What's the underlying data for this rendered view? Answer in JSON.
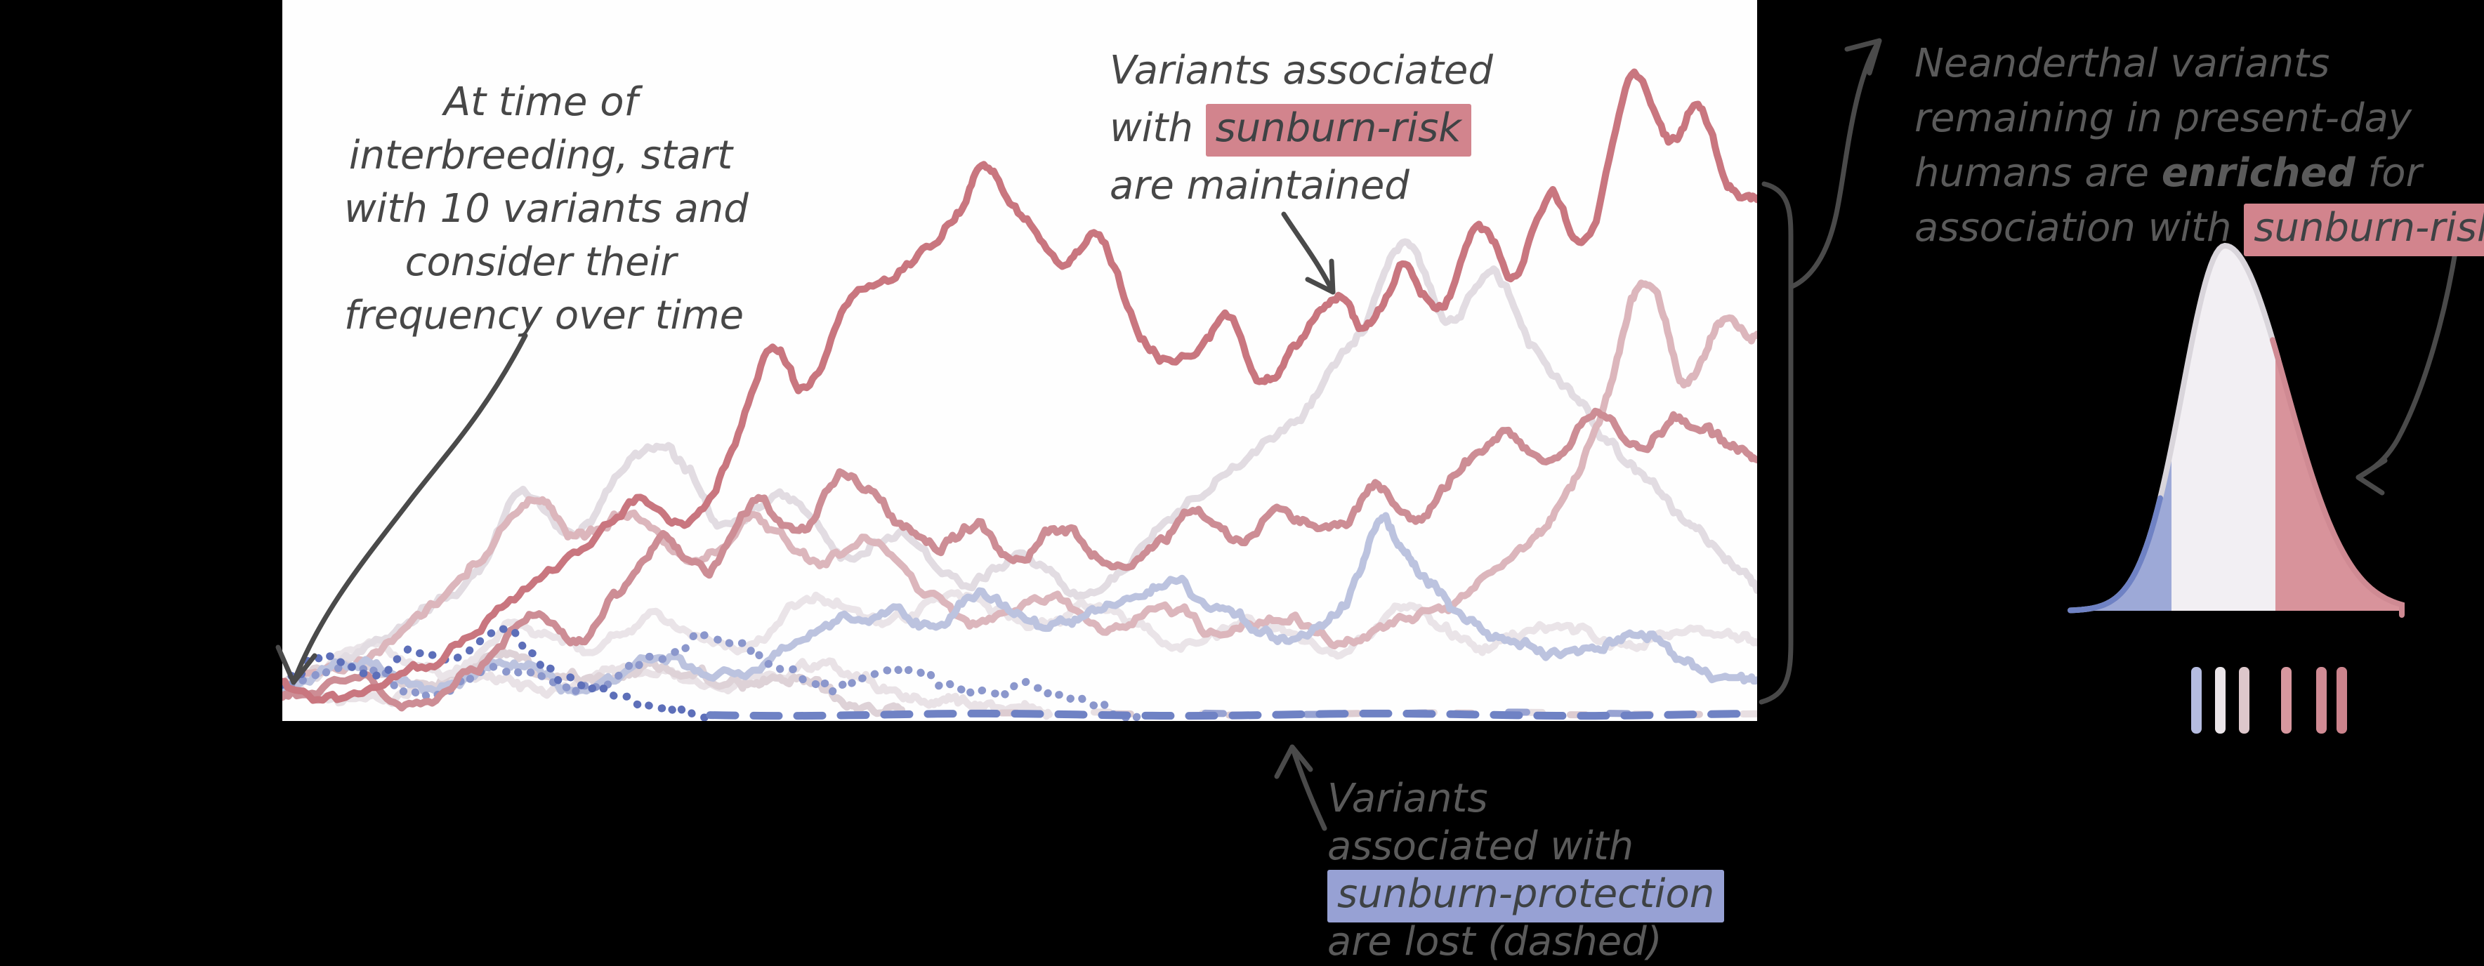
{
  "colors": {
    "background": "#000000",
    "plot_background": "#fefefe",
    "ink_dark": "#474747",
    "ink_gray": "#5a5a5a",
    "ink_on_highlight": "#3e4244",
    "risk_highlight": "#d2848d",
    "protection_highlight": "#97a1d4",
    "bracket": "#484848",
    "arrow": "#4a4a4a"
  },
  "annotations": {
    "start": {
      "l1": "At time of",
      "l2": "interbreeding, start",
      "l3": "with 10 variants and",
      "l4": "consider their",
      "l5": "frequency over time"
    },
    "maintained": {
      "l1": "Variants associated",
      "l2a": "with ",
      "l2hl": "sunburn-risk",
      "l3": "are maintained"
    },
    "enriched": {
      "l1": "Neanderthal variants",
      "l2": "remaining in present-day",
      "l3a": "humans are ",
      "l3b": "enriched",
      "l3c": " for",
      "l4a": "association with ",
      "l4hl": "sunburn-risk"
    },
    "lost": {
      "l1": "Variants",
      "l2": "associated with",
      "l3hl": "sunburn-protection",
      "l4": "are lost (dashed)"
    }
  },
  "chart_data": {
    "type": "line",
    "title": "",
    "xlabel": "",
    "ylabel": "",
    "x_range": [
      0,
      1
    ],
    "y_range": [
      0,
      1
    ],
    "grid": false,
    "legend": false,
    "axes_visible": false,
    "description": "Simulated frequency trajectories over time of 10 Neanderthal variants introduced at interbreeding; risk-associated (red) variants are maintained, protection-associated (blue) variants are lost (drawn dashed along zero after extinction).",
    "series": [
      {
        "name": "variant-pale-lost-a",
        "association": "weak",
        "fate": "lost",
        "color": "#e9e2e6",
        "style": "solid",
        "extinct_at": 0.52,
        "points": [
          [
            0,
            0.05
          ],
          [
            0.06,
            0.03
          ],
          [
            0.12,
            0.07
          ],
          [
            0.18,
            0.04
          ],
          [
            0.24,
            0.08
          ],
          [
            0.3,
            0.05
          ],
          [
            0.36,
            0.07
          ],
          [
            0.42,
            0.04
          ],
          [
            0.47,
            0.02
          ],
          [
            0.52,
            0.01
          ]
        ]
      },
      {
        "name": "variant-pale-lost-b",
        "association": "weak",
        "fate": "lost",
        "color": "#ded2d7",
        "style": "solid",
        "extinct_at": 0.42,
        "points": [
          [
            0,
            0.04
          ],
          [
            0.05,
            0.07
          ],
          [
            0.1,
            0.05
          ],
          [
            0.15,
            0.09
          ],
          [
            0.2,
            0.06
          ],
          [
            0.25,
            0.08
          ],
          [
            0.3,
            0.05
          ],
          [
            0.34,
            0.06
          ],
          [
            0.38,
            0.03
          ],
          [
            0.42,
            0.01
          ]
        ]
      },
      {
        "name": "variant-pale-low",
        "association": "weak",
        "fate": "maintained-low",
        "color": "#eae4e8",
        "style": "solid",
        "points": [
          [
            0,
            0.05
          ],
          [
            0.06,
            0.11
          ],
          [
            0.11,
            0.07
          ],
          [
            0.16,
            0.13
          ],
          [
            0.21,
            0.09
          ],
          [
            0.26,
            0.14
          ],
          [
            0.31,
            0.1
          ],
          [
            0.36,
            0.16
          ],
          [
            0.41,
            0.12
          ],
          [
            0.46,
            0.17
          ],
          [
            0.51,
            0.13
          ],
          [
            0.56,
            0.16
          ],
          [
            0.61,
            0.11
          ],
          [
            0.66,
            0.14
          ],
          [
            0.71,
            0.1
          ],
          [
            0.76,
            0.15
          ],
          [
            0.81,
            0.11
          ],
          [
            0.86,
            0.14
          ],
          [
            0.91,
            0.1
          ],
          [
            0.95,
            0.13
          ],
          [
            1,
            0.1
          ]
        ]
      },
      {
        "name": "variant-pale-gray",
        "association": "weak",
        "fate": "maintained-low",
        "color": "#e2dce2",
        "style": "solid",
        "points": [
          [
            0,
            0.05
          ],
          [
            0.05,
            0.09
          ],
          [
            0.09,
            0.14
          ],
          [
            0.13,
            0.2
          ],
          [
            0.165,
            0.32
          ],
          [
            0.2,
            0.27
          ],
          [
            0.235,
            0.37
          ],
          [
            0.27,
            0.36
          ],
          [
            0.3,
            0.27
          ],
          [
            0.34,
            0.3
          ],
          [
            0.38,
            0.23
          ],
          [
            0.42,
            0.26
          ],
          [
            0.46,
            0.19
          ],
          [
            0.5,
            0.23
          ],
          [
            0.54,
            0.18
          ],
          [
            0.58,
            0.24
          ],
          [
            0.62,
            0.31
          ],
          [
            0.66,
            0.38
          ],
          [
            0.7,
            0.45
          ],
          [
            0.73,
            0.54
          ],
          [
            0.76,
            0.66
          ],
          [
            0.79,
            0.57
          ],
          [
            0.82,
            0.63
          ],
          [
            0.85,
            0.52
          ],
          [
            0.88,
            0.44
          ],
          [
            0.91,
            0.36
          ],
          [
            0.94,
            0.3
          ],
          [
            0.97,
            0.24
          ],
          [
            1,
            0.18
          ]
        ]
      },
      {
        "name": "variant-pink-late-rise",
        "association": "risk",
        "fate": "maintained",
        "color": "#dcb6bc",
        "style": "solid",
        "points": [
          [
            0,
            0.04
          ],
          [
            0.05,
            0.08
          ],
          [
            0.09,
            0.14
          ],
          [
            0.13,
            0.22
          ],
          [
            0.17,
            0.3
          ],
          [
            0.2,
            0.25
          ],
          [
            0.24,
            0.29
          ],
          [
            0.28,
            0.22
          ],
          [
            0.32,
            0.27
          ],
          [
            0.36,
            0.21
          ],
          [
            0.4,
            0.25
          ],
          [
            0.44,
            0.18
          ],
          [
            0.48,
            0.14
          ],
          [
            0.52,
            0.17
          ],
          [
            0.56,
            0.12
          ],
          [
            0.6,
            0.15
          ],
          [
            0.64,
            0.11
          ],
          [
            0.68,
            0.14
          ],
          [
            0.72,
            0.1
          ],
          [
            0.76,
            0.13
          ],
          [
            0.8,
            0.17
          ],
          [
            0.84,
            0.22
          ],
          [
            0.87,
            0.3
          ],
          [
            0.9,
            0.45
          ],
          [
            0.925,
            0.61
          ],
          [
            0.95,
            0.47
          ],
          [
            0.975,
            0.55
          ],
          [
            1,
            0.53
          ]
        ]
      },
      {
        "name": "variant-blue-light",
        "association": "protection",
        "fate": "maintained-low",
        "color": "#bcc3df",
        "style": "solid",
        "points": [
          [
            0,
            0.04
          ],
          [
            0.05,
            0.08
          ],
          [
            0.1,
            0.05
          ],
          [
            0.15,
            0.09
          ],
          [
            0.2,
            0.05
          ],
          [
            0.25,
            0.08
          ],
          [
            0.3,
            0.06
          ],
          [
            0.35,
            0.11
          ],
          [
            0.4,
            0.15
          ],
          [
            0.44,
            0.12
          ],
          [
            0.48,
            0.17
          ],
          [
            0.52,
            0.13
          ],
          [
            0.56,
            0.16
          ],
          [
            0.6,
            0.19
          ],
          [
            0.64,
            0.15
          ],
          [
            0.68,
            0.12
          ],
          [
            0.72,
            0.17
          ],
          [
            0.745,
            0.27
          ],
          [
            0.77,
            0.21
          ],
          [
            0.8,
            0.15
          ],
          [
            0.84,
            0.11
          ],
          [
            0.88,
            0.09
          ],
          [
            0.92,
            0.12
          ],
          [
            0.96,
            0.07
          ],
          [
            1,
            0.05
          ]
        ]
      },
      {
        "name": "variant-blue-medium",
        "association": "protection",
        "fate": "lost",
        "color": "#8b97cc",
        "style": "dots",
        "extinct_at": 0.58,
        "points": [
          [
            0,
            0.04
          ],
          [
            0.05,
            0.07
          ],
          [
            0.1,
            0.04
          ],
          [
            0.15,
            0.08
          ],
          [
            0.2,
            0.05
          ],
          [
            0.25,
            0.09
          ],
          [
            0.3,
            0.12
          ],
          [
            0.34,
            0.08
          ],
          [
            0.38,
            0.05
          ],
          [
            0.42,
            0.07
          ],
          [
            0.46,
            0.04
          ],
          [
            0.5,
            0.05
          ],
          [
            0.54,
            0.03
          ],
          [
            0.58,
            0.008
          ]
        ]
      },
      {
        "name": "variant-rose-medium",
        "association": "risk",
        "fate": "maintained",
        "color": "#cd8d95",
        "style": "solid",
        "points": [
          [
            0,
            0.03
          ],
          [
            0.05,
            0.05
          ],
          [
            0.09,
            0.03
          ],
          [
            0.13,
            0.08
          ],
          [
            0.17,
            0.15
          ],
          [
            0.2,
            0.11
          ],
          [
            0.23,
            0.18
          ],
          [
            0.26,
            0.25
          ],
          [
            0.29,
            0.21
          ],
          [
            0.32,
            0.3
          ],
          [
            0.35,
            0.26
          ],
          [
            0.38,
            0.33
          ],
          [
            0.41,
            0.28
          ],
          [
            0.44,
            0.24
          ],
          [
            0.47,
            0.27
          ],
          [
            0.5,
            0.22
          ],
          [
            0.53,
            0.26
          ],
          [
            0.56,
            0.21
          ],
          [
            0.59,
            0.25
          ],
          [
            0.62,
            0.29
          ],
          [
            0.65,
            0.25
          ],
          [
            0.68,
            0.3
          ],
          [
            0.71,
            0.26
          ],
          [
            0.74,
            0.32
          ],
          [
            0.77,
            0.28
          ],
          [
            0.8,
            0.35
          ],
          [
            0.83,
            0.4
          ],
          [
            0.86,
            0.36
          ],
          [
            0.89,
            0.43
          ],
          [
            0.92,
            0.38
          ],
          [
            0.95,
            0.42
          ],
          [
            0.98,
            0.38
          ],
          [
            1,
            0.36
          ]
        ]
      },
      {
        "name": "variant-blue-strong",
        "association": "protection",
        "fate": "lost",
        "color": "#5d6fb9",
        "style": "dots",
        "extinct_at": 0.29,
        "points": [
          [
            0,
            0.05
          ],
          [
            0.03,
            0.09
          ],
          [
            0.06,
            0.06
          ],
          [
            0.09,
            0.11
          ],
          [
            0.12,
            0.08
          ],
          [
            0.15,
            0.12
          ],
          [
            0.18,
            0.07
          ],
          [
            0.21,
            0.05
          ],
          [
            0.24,
            0.03
          ],
          [
            0.27,
            0.015
          ],
          [
            0.29,
            0.008
          ]
        ]
      },
      {
        "name": "variant-red-strong",
        "association": "risk",
        "fate": "maintained",
        "color": "#c9767f",
        "style": "solid",
        "points": [
          [
            0,
            0.05
          ],
          [
            0.04,
            0.03
          ],
          [
            0.08,
            0.06
          ],
          [
            0.12,
            0.1
          ],
          [
            0.16,
            0.17
          ],
          [
            0.2,
            0.24
          ],
          [
            0.24,
            0.31
          ],
          [
            0.27,
            0.27
          ],
          [
            0.3,
            0.36
          ],
          [
            0.33,
            0.52
          ],
          [
            0.355,
            0.46
          ],
          [
            0.385,
            0.58
          ],
          [
            0.42,
            0.63
          ],
          [
            0.455,
            0.7
          ],
          [
            0.475,
            0.77
          ],
          [
            0.5,
            0.71
          ],
          [
            0.53,
            0.63
          ],
          [
            0.555,
            0.67
          ],
          [
            0.585,
            0.52
          ],
          [
            0.615,
            0.5
          ],
          [
            0.64,
            0.55
          ],
          [
            0.665,
            0.47
          ],
          [
            0.69,
            0.53
          ],
          [
            0.715,
            0.59
          ],
          [
            0.735,
            0.55
          ],
          [
            0.76,
            0.63
          ],
          [
            0.785,
            0.57
          ],
          [
            0.81,
            0.68
          ],
          [
            0.835,
            0.62
          ],
          [
            0.86,
            0.72
          ],
          [
            0.885,
            0.66
          ],
          [
            0.915,
            0.89
          ],
          [
            0.94,
            0.8
          ],
          [
            0.96,
            0.85
          ],
          [
            0.98,
            0.75
          ],
          [
            1,
            0.73
          ]
        ]
      }
    ],
    "distribution": {
      "description": "Skewed density of remaining Neanderthal variants: enriched for sunburn-risk (red right area), small sunburn-protection tail (blue left)",
      "baseline_y": 870,
      "peak_x": 3168,
      "peak_height": 520,
      "sigma_left": 60,
      "sigma_right": 88,
      "x_start": 2948,
      "x_end": 3420,
      "risk_region_from_x": 3240,
      "protection_region_to_x": 3092,
      "body_fill": "#f2eff3",
      "risk_fill": "#d8939b",
      "protection_fill": "#8e9cd1",
      "outline_left": "#d9d5db",
      "outline_right": "#cf8a93",
      "tail_line": "#6f82c4",
      "ticks": {
        "y": 950,
        "height": 95,
        "width": 15,
        "items": [
          {
            "x": 3120,
            "color": "#b5bce0"
          },
          {
            "x": 3154,
            "color": "#eae4e8"
          },
          {
            "x": 3188,
            "color": "#ddc7cb"
          },
          {
            "x": 3248,
            "color": "#d7989f"
          },
          {
            "x": 3298,
            "color": "#d08b94"
          },
          {
            "x": 3327,
            "color": "#cb838c"
          }
        ]
      }
    }
  }
}
